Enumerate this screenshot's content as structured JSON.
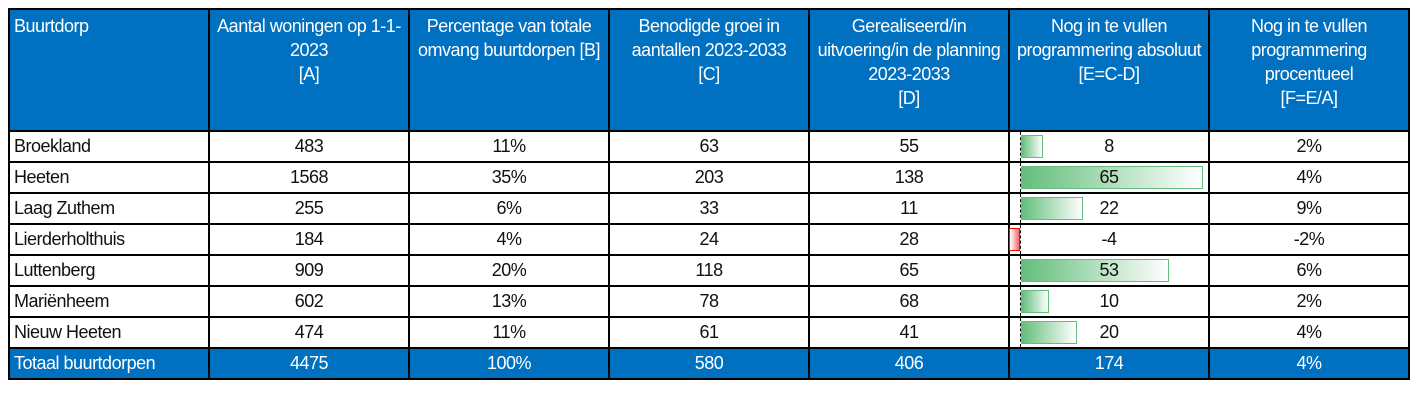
{
  "headers": [
    "Buurtdorp",
    "Aantal woningen op 1-1-2023\n[A]",
    "Percentage van totale omvang buurtdorpen [B]",
    "Benodigde groei in aantallen 2023-2033\n[C]",
    "Gerealiseerd/in uitvoering/in de planning 2023-2033\n[D]",
    "Nog in te vullen programmering absoluut\n[E=C-D]",
    "Nog in te vullen programmering procentueel\n[F=E/A]"
  ],
  "rows": [
    {
      "name": "Broekland",
      "a": "483",
      "b": "11%",
      "c": "63",
      "d": "55",
      "e": "8",
      "e_num": 8,
      "f": "2%"
    },
    {
      "name": "Heeten",
      "a": "1568",
      "b": "35%",
      "c": "203",
      "d": "138",
      "e": "65",
      "e_num": 65,
      "f": "4%"
    },
    {
      "name": "Laag Zuthem",
      "a": "255",
      "b": "6%",
      "c": "33",
      "d": "11",
      "e": "22",
      "e_num": 22,
      "f": "9%"
    },
    {
      "name": "Lierderholthuis",
      "a": "184",
      "b": "4%",
      "c": "24",
      "d": "28",
      "e": "-4",
      "e_num": -4,
      "f": "-2%"
    },
    {
      "name": "Luttenberg",
      "a": "909",
      "b": "20%",
      "c": "118",
      "d": "65",
      "e": "53",
      "e_num": 53,
      "f": "6%"
    },
    {
      "name": "Mariënheem",
      "a": "602",
      "b": "13%",
      "c": "78",
      "d": "68",
      "e": "10",
      "e_num": 10,
      "f": "2%"
    },
    {
      "name": "Nieuw Heeten",
      "a": "474",
      "b": "11%",
      "c": "61",
      "d": "41",
      "e": "20",
      "e_num": 20,
      "f": "4%"
    }
  ],
  "total": {
    "name": "Totaal buurtdorpen",
    "a": "4475",
    "b": "100%",
    "c": "580",
    "d": "406",
    "e": "174",
    "f": "4%"
  },
  "colors": {
    "header": "#0070c0",
    "bar_positive": "#63be7b",
    "bar_negative": "#ff0000"
  }
}
